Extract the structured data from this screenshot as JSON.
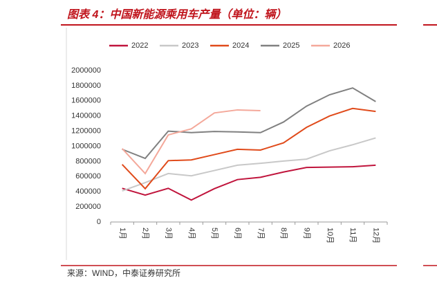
{
  "chart_data": {
    "type": "line",
    "title": "图表 4：中国新能源乘用车产量（单位：辆）",
    "source": "来源：WIND，中泰证券研究所",
    "categories": [
      "1月",
      "2月",
      "3月",
      "4月",
      "5月",
      "6月",
      "7月",
      "8月",
      "9月",
      "10月",
      "11月",
      "12月"
    ],
    "series": [
      {
        "name": "2022",
        "color": "#c0143c",
        "values": [
          445000,
          355000,
          445000,
          290000,
          440000,
          560000,
          590000,
          660000,
          720000,
          725000,
          730000,
          750000
        ]
      },
      {
        "name": "2023",
        "color": "#c8c8c8",
        "values": [
          410000,
          520000,
          640000,
          610000,
          680000,
          750000,
          775000,
          805000,
          830000,
          940000,
          1020000,
          1110000
        ]
      },
      {
        "name": "2024",
        "color": "#e04a1a",
        "values": [
          760000,
          440000,
          810000,
          820000,
          890000,
          960000,
          950000,
          1045000,
          1250000,
          1400000,
          1500000,
          1460000
        ]
      },
      {
        "name": "2025",
        "color": "#808080",
        "values": [
          960000,
          840000,
          1200000,
          1180000,
          1195000,
          1190000,
          1180000,
          1320000,
          1530000,
          1680000,
          1770000,
          1590000
        ]
      },
      {
        "name": "2026",
        "color": "#f4a89a",
        "values": [
          970000,
          640000,
          1150000,
          1230000,
          1440000,
          1480000,
          1470000,
          null,
          null,
          null,
          null,
          null
        ]
      }
    ],
    "ylim": [
      0,
      2000000
    ],
    "yticks": [
      0,
      200000,
      400000,
      600000,
      800000,
      1000000,
      1200000,
      1400000,
      1600000,
      1800000,
      2000000
    ]
  }
}
